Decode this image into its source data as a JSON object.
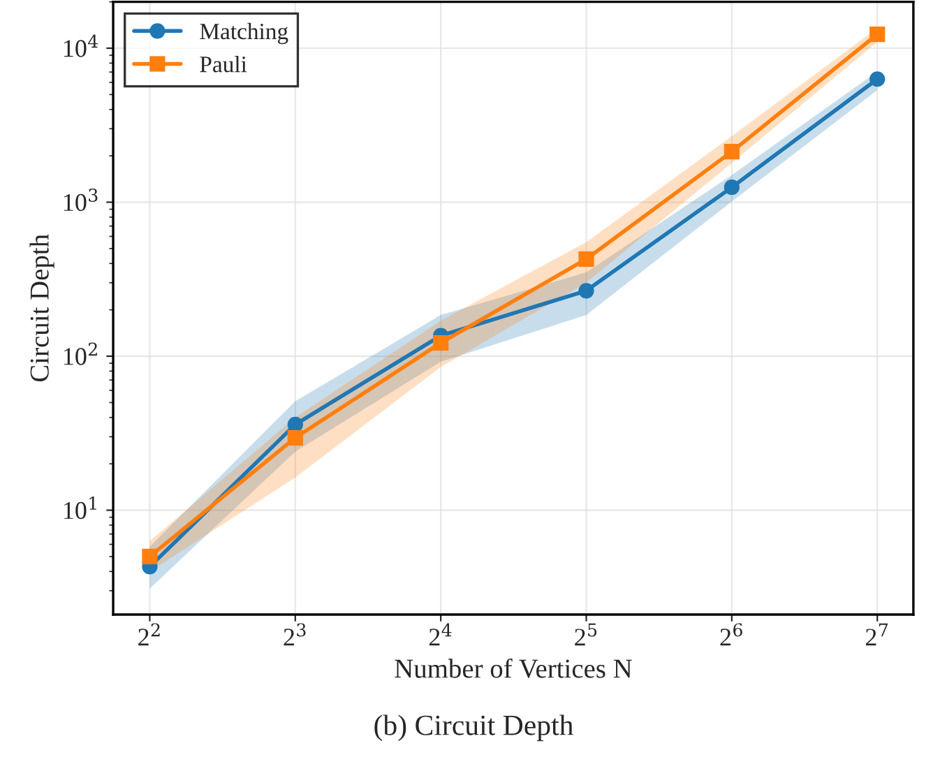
{
  "chart_data": {
    "type": "line",
    "xlabel": "Number of Vertices N",
    "ylabel": "Circuit Depth",
    "annotations": [
      "(b) Circuit Depth"
    ],
    "x": [
      4,
      8,
      16,
      32,
      64,
      128
    ],
    "series": [
      {
        "name": "Matching",
        "color": "#1f77b4",
        "marker": "circle",
        "values": [
          4.3,
          36,
          136,
          266,
          1250,
          6300
        ],
        "lower": [
          3.1,
          24,
          92,
          185,
          1010,
          5350
        ],
        "upper": [
          5.8,
          51,
          185,
          350,
          1500,
          7050
        ]
      },
      {
        "name": "Pauli",
        "color": "#ff7f0e",
        "marker": "square",
        "values": [
          5.0,
          29.5,
          122,
          427,
          2130,
          12300
        ],
        "lower": [
          4.0,
          16.3,
          85,
          300,
          1800,
          11000
        ],
        "upper": [
          6.3,
          40,
          170,
          550,
          2680,
          13500
        ]
      }
    ],
    "log": "xy",
    "xlim": [
      3.36,
      152
    ],
    "ylim": [
      2.1,
      20000
    ],
    "xticks": [
      {
        "value": 4,
        "label": "2$^{2}$"
      },
      {
        "value": 8,
        "label": "2$^{3}$"
      },
      {
        "value": 16,
        "label": "2$^{4}$"
      },
      {
        "value": 32,
        "label": "2$^{5}$"
      },
      {
        "value": 64,
        "label": "2$^{6}$"
      },
      {
        "value": 128,
        "label": "2$^{7}$"
      }
    ],
    "yticks": [
      {
        "value": 10,
        "label": "10$^{1}$"
      },
      {
        "value": 100,
        "label": "10$^{2}$"
      },
      {
        "value": 1000,
        "label": "10$^{3}$"
      },
      {
        "value": 10000,
        "label": "10$^{4}$"
      }
    ],
    "grid": true,
    "legend": "top left",
    "line_style": "solid"
  }
}
